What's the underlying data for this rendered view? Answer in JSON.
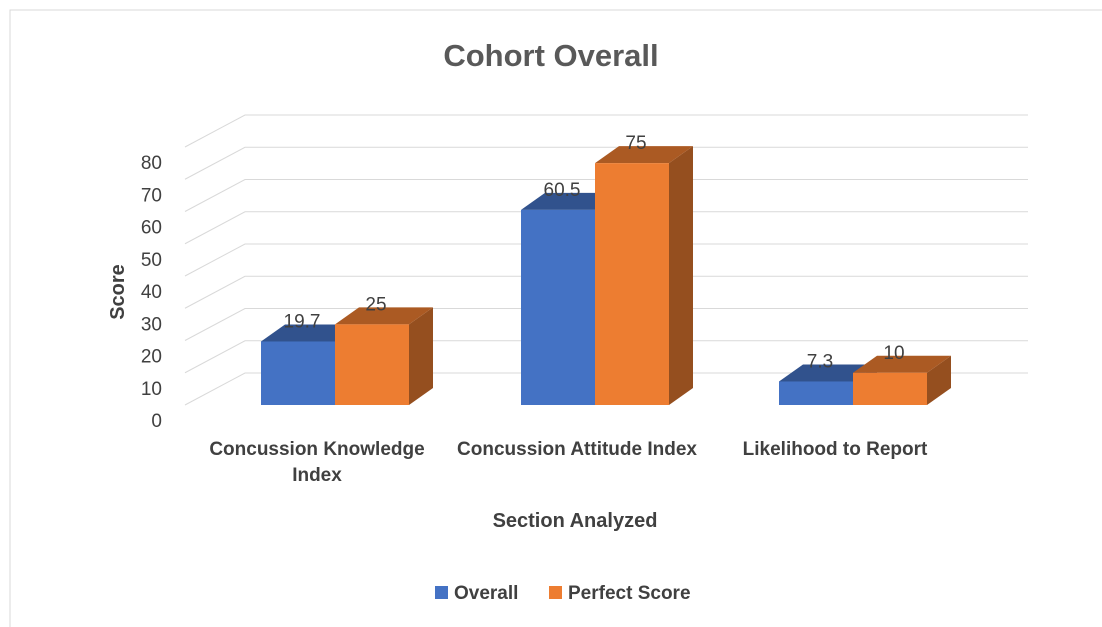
{
  "chart_data": {
    "type": "bar3d",
    "title": "Cohort Overall",
    "x_label": "Section Analyzed",
    "y_label": "Score",
    "categories": [
      "Concussion Knowledge Index",
      "Concussion Attitude Index",
      "Likelihood to Report"
    ],
    "series": [
      {
        "name": "Overall",
        "color": "#4472c4",
        "values": [
          19.7,
          60.5,
          7.3
        ]
      },
      {
        "name": "Perfect Score",
        "color": "#ed7d31",
        "values": [
          25,
          75,
          10
        ]
      }
    ],
    "ylim": [
      0,
      80
    ],
    "yticks": [
      0,
      10,
      20,
      30,
      40,
      50,
      60,
      70,
      80
    ],
    "grid": true,
    "legend": "bottom"
  }
}
